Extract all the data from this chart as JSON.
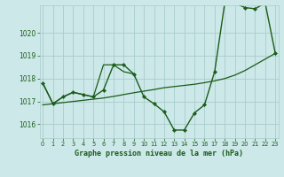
{
  "title": "Graphe pression niveau de la mer (hPa)",
  "background_color": "#cce8e8",
  "grid_color": "#aacccc",
  "line_color": "#1a5c1a",
  "x_ticks": [
    0,
    1,
    2,
    3,
    4,
    5,
    6,
    7,
    8,
    9,
    10,
    11,
    12,
    13,
    14,
    15,
    16,
    17,
    18,
    19,
    20,
    21,
    22,
    23
  ],
  "y_ticks": [
    1016,
    1017,
    1018,
    1019,
    1020
  ],
  "ylim": [
    1015.4,
    1021.2
  ],
  "xlim": [
    -0.3,
    23.3
  ],
  "series": [
    {
      "x": [
        0,
        1,
        2,
        3,
        4,
        5,
        6,
        7,
        8,
        9,
        10,
        11,
        12,
        13,
        14,
        15,
        16,
        17,
        18,
        19,
        20,
        21,
        22,
        23
      ],
      "y": [
        1017.8,
        1016.9,
        1017.2,
        1017.4,
        1017.3,
        1017.2,
        1017.5,
        1018.6,
        1018.6,
        1018.2,
        1017.2,
        1016.9,
        1016.55,
        1015.75,
        1015.75,
        1016.5,
        1016.85,
        1018.3,
        1021.3,
        1021.3,
        1021.1,
        1021.05,
        1021.3,
        1019.1
      ],
      "has_markers": true,
      "linewidth": 1.0
    },
    {
      "x": [
        0,
        1,
        2,
        3,
        4,
        5,
        6,
        7,
        8,
        9
      ],
      "y": [
        1017.8,
        1016.9,
        1017.2,
        1017.4,
        1017.3,
        1017.2,
        1018.6,
        1018.6,
        1018.3,
        1018.2
      ],
      "has_markers": false,
      "linewidth": 0.9
    },
    {
      "x": [
        0,
        1,
        2,
        3,
        4,
        5,
        6,
        7,
        8,
        9,
        10,
        11,
        12,
        13,
        14,
        15,
        16,
        17,
        18,
        19,
        20,
        21,
        22,
        23
      ],
      "y": [
        1016.85,
        1016.9,
        1016.95,
        1017.0,
        1017.05,
        1017.1,
        1017.15,
        1017.22,
        1017.3,
        1017.38,
        1017.45,
        1017.52,
        1017.6,
        1017.65,
        1017.7,
        1017.75,
        1017.82,
        1017.9,
        1018.0,
        1018.15,
        1018.35,
        1018.6,
        1018.85,
        1019.1
      ],
      "has_markers": false,
      "linewidth": 0.9
    }
  ],
  "tick_fontsize": 5.5,
  "xtick_fontsize": 4.8,
  "xlabel_fontsize": 6.0,
  "tick_color": "#1a5c1a",
  "spine_color": "#aacccc"
}
